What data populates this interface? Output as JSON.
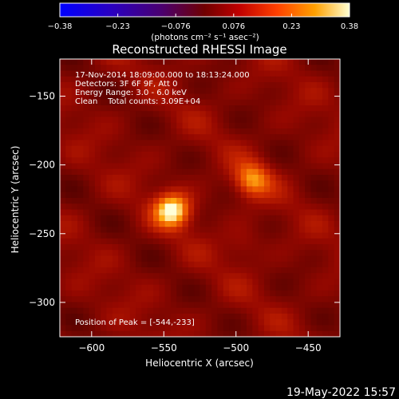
{
  "chart_data": {
    "type": "heatmap",
    "title": "Reconstructed RHESSI Image",
    "xlabel": "Heliocentric X (arcsec)",
    "ylabel": "Heliocentric Y (arcsec)",
    "xlim": [
      -622,
      -428
    ],
    "ylim": [
      -325,
      -123
    ],
    "xticks": [
      -600,
      -550,
      -500,
      -450
    ],
    "yticks": [
      -150,
      -200,
      -250,
      -300
    ],
    "xtick_labels": [
      "−600",
      "−550",
      "−500",
      "−450"
    ],
    "ytick_labels": [
      "−150",
      "−200",
      "−250",
      "−300"
    ],
    "colorbar": {
      "range": [
        -0.38,
        0.38
      ],
      "tick_labels": [
        "−0.38",
        "−0.23",
        "−0.076",
        "0.076",
        "0.23",
        "0.38"
      ],
      "unit_label": "(photons cm⁻² s⁻¹ asec⁻²)"
    },
    "annotations": {
      "time_range": "17-Nov-2014 18:09:00.000 to 18:13:24.000",
      "detectors": "Detectors: 3F 6F 9F, Att 0",
      "energy": "Energy Range: 3.0 - 6.0 keV",
      "clean": "Clean    Total counts: 3.09E+04",
      "peak": "Position of Peak = [-544,-233]"
    },
    "sources": [
      {
        "x": -544,
        "y": -233,
        "flux": 0.38
      },
      {
        "x": -489,
        "y": -211,
        "flux": 0.3
      },
      {
        "x": -495,
        "y": -258,
        "flux": 0.16
      }
    ],
    "background_level": 0.11
  },
  "footer": {
    "date": "19-May-2022 15:57"
  }
}
